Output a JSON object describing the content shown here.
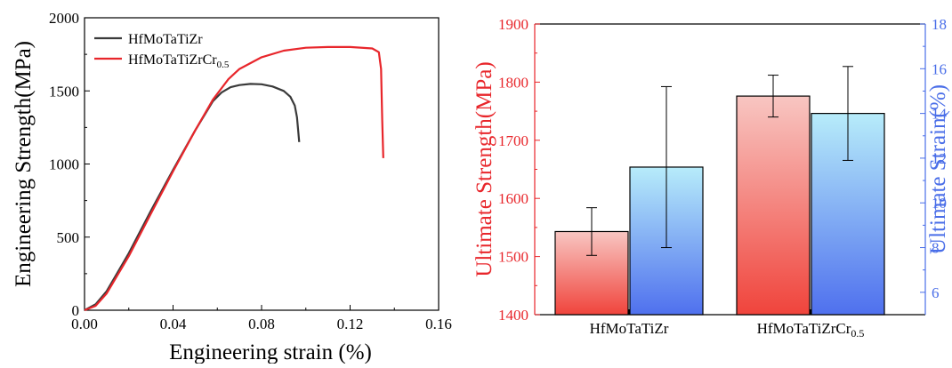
{
  "chart_data": [
    {
      "type": "line",
      "title": "",
      "xlabel": "Engineering strain (%)",
      "ylabel": "Engineering Strength(MPa)",
      "xlim": [
        0,
        0.16
      ],
      "ylim": [
        0,
        2000
      ],
      "x_ticks": [
        "0.00",
        "0.04",
        "0.08",
        "0.12",
        "0.16"
      ],
      "y_ticks": [
        "0",
        "500",
        "1000",
        "1500",
        "2000"
      ],
      "legend_position": "top-left",
      "grid": false,
      "series": [
        {
          "name": "HfMoTaTiZr",
          "color": "#3a3a3a",
          "x": [
            0,
            0.005,
            0.01,
            0.02,
            0.03,
            0.04,
            0.05,
            0.058,
            0.062,
            0.066,
            0.07,
            0.075,
            0.08,
            0.085,
            0.09,
            0.093,
            0.095,
            0.096,
            0.097
          ],
          "y": [
            0,
            40,
            130,
            390,
            680,
            960,
            1230,
            1430,
            1490,
            1525,
            1540,
            1548,
            1545,
            1530,
            1500,
            1460,
            1400,
            1320,
            1150
          ]
        },
        {
          "name": "HfMoTaTiZrCr",
          "name_subscript": "0.5",
          "color": "#e8262b",
          "x": [
            0,
            0.005,
            0.01,
            0.02,
            0.03,
            0.04,
            0.05,
            0.058,
            0.065,
            0.07,
            0.08,
            0.09,
            0.1,
            0.11,
            0.12,
            0.13,
            0.133,
            0.134,
            0.1345,
            0.135
          ],
          "y": [
            0,
            30,
            115,
            370,
            660,
            950,
            1230,
            1440,
            1580,
            1650,
            1730,
            1775,
            1795,
            1800,
            1800,
            1790,
            1765,
            1650,
            1300,
            1040
          ]
        }
      ]
    },
    {
      "type": "bar",
      "title": "",
      "xlabel": "",
      "categories": [
        "HfMoTaTiZr",
        "HfMoTaTiZrCr"
      ],
      "category_subscripts": [
        "",
        "0.5"
      ],
      "ylabel_left": "Ultimate Strength(MPa)",
      "ylabel_right": "Ultimate Strain(%)",
      "ylim_left": [
        1400,
        1900
      ],
      "ylim_right": [
        5,
        18
      ],
      "y_ticks_left": [
        "1400",
        "1500",
        "1600",
        "1700",
        "1800",
        "1900"
      ],
      "y_ticks_right": [
        "6",
        "8",
        "10",
        "12",
        "14",
        "16",
        "18"
      ],
      "left_axis_color": "#e8262b",
      "right_axis_color": "#4a6ee8",
      "series": [
        {
          "name": "Ultimate Strength",
          "axis": "left",
          "values": [
            1543,
            1776
          ],
          "errors": [
            41,
            36
          ],
          "gradient_colors": [
            "#f8c6c2",
            "#f0443c"
          ]
        },
        {
          "name": "Ultimate Strain",
          "axis": "right",
          "values": [
            11.6,
            14.0
          ],
          "errors": [
            3.6,
            2.1
          ],
          "gradient_colors": [
            "#b7ecfa",
            "#4f70ee"
          ]
        }
      ]
    }
  ]
}
